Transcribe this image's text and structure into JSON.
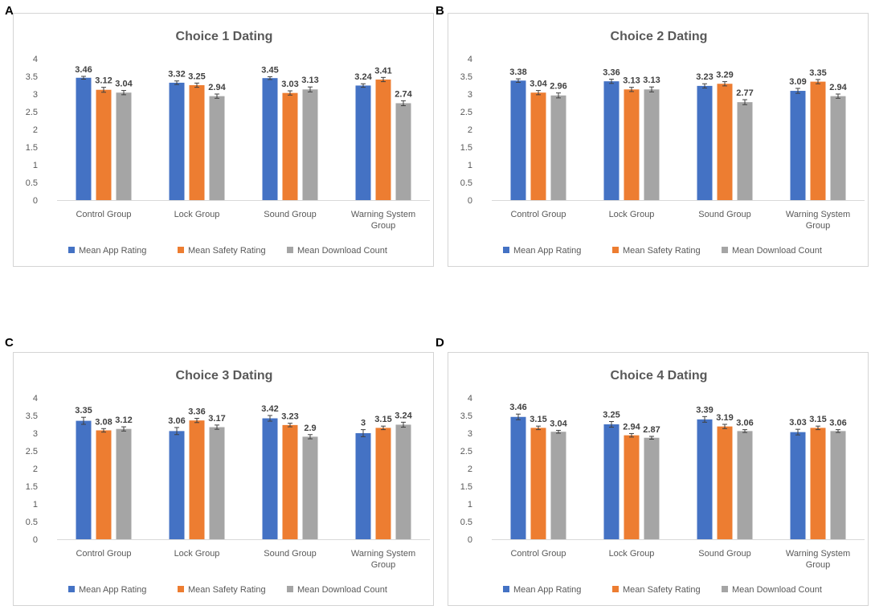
{
  "categories": [
    "Control Group",
    "Lock Group",
    "Sound Group",
    [
      "Warning System",
      "Group"
    ]
  ],
  "series_names": [
    "Mean App Rating",
    "Mean Safety Rating",
    "Mean Download Count"
  ],
  "colors": [
    "#4472c4",
    "#ed7d31",
    "#a5a5a5"
  ],
  "chart_data": [
    {
      "panel": "A",
      "type": "bar",
      "title": "Choice 1 Dating",
      "ylim": [
        0,
        4
      ],
      "yticks": [
        "0",
        "0.5",
        "1",
        "1.5",
        "2",
        "2.5",
        "3",
        "3.5",
        "4"
      ],
      "series": [
        {
          "name": "Mean App Rating",
          "values": [
            3.46,
            3.32,
            3.45,
            3.24
          ],
          "labels": [
            "3.46",
            "3.32",
            "3.45",
            "3.24"
          ]
        },
        {
          "name": "Mean Safety Rating",
          "values": [
            3.12,
            3.25,
            3.03,
            3.41
          ],
          "labels": [
            "3.12",
            "3.25",
            "3.03",
            "3.41"
          ]
        },
        {
          "name": "Mean Download Count",
          "values": [
            3.04,
            2.94,
            3.13,
            2.74
          ],
          "labels": [
            "3.04",
            "2.94",
            "3.13",
            "2.74"
          ]
        }
      ],
      "errors": [
        [
          0.04,
          0.05,
          0.04,
          0.05
        ],
        [
          0.07,
          0.06,
          0.06,
          0.06
        ],
        [
          0.06,
          0.06,
          0.07,
          0.07
        ]
      ]
    },
    {
      "panel": "B",
      "type": "bar",
      "title": "Choice 2 Dating",
      "ylim": [
        0,
        4
      ],
      "yticks": [
        "0",
        "0.5",
        "1",
        "1.5",
        "2",
        "2.5",
        "3",
        "3.5",
        "4"
      ],
      "series": [
        {
          "name": "Mean App Rating",
          "values": [
            3.38,
            3.36,
            3.23,
            3.09
          ],
          "labels": [
            "3.38",
            "3.36",
            "3.23",
            "3.09"
          ]
        },
        {
          "name": "Mean Safety Rating",
          "values": [
            3.04,
            3.13,
            3.29,
            3.35
          ],
          "labels": [
            "3.04",
            "3.13",
            "3.29",
            "3.35"
          ]
        },
        {
          "name": "Mean Download Count",
          "values": [
            2.96,
            3.13,
            2.77,
            2.94
          ],
          "labels": [
            "2.96",
            "3.13",
            "2.77",
            "2.94"
          ]
        }
      ],
      "errors": [
        [
          0.05,
          0.06,
          0.06,
          0.07
        ],
        [
          0.06,
          0.06,
          0.06,
          0.06
        ],
        [
          0.07,
          0.07,
          0.07,
          0.06
        ]
      ]
    },
    {
      "panel": "C",
      "type": "bar",
      "title": "Choice 3 Dating",
      "ylim": [
        0,
        4
      ],
      "yticks": [
        "0",
        "0.5",
        "1",
        "1.5",
        "2",
        "2.5",
        "3",
        "3.5",
        "4"
      ],
      "series": [
        {
          "name": "Mean App Rating",
          "values": [
            3.35,
            3.06,
            3.42,
            3.0
          ],
          "labels": [
            "3.35",
            "3.06",
            "3.42",
            "3"
          ]
        },
        {
          "name": "Mean Safety Rating",
          "values": [
            3.08,
            3.36,
            3.23,
            3.15
          ],
          "labels": [
            "3.08",
            "3.36",
            "3.23",
            "3.15"
          ]
        },
        {
          "name": "Mean Download Count",
          "values": [
            3.12,
            3.17,
            2.9,
            3.24
          ],
          "labels": [
            "3.12",
            "3.17",
            "2.9",
            "3.24"
          ]
        }
      ],
      "errors": [
        [
          0.1,
          0.1,
          0.08,
          0.1
        ],
        [
          0.05,
          0.06,
          0.05,
          0.05
        ],
        [
          0.06,
          0.06,
          0.06,
          0.07
        ]
      ]
    },
    {
      "panel": "D",
      "type": "bar",
      "title": "Choice 4 Dating",
      "ylim": [
        0,
        4
      ],
      "yticks": [
        "0",
        "0.5",
        "1",
        "1.5",
        "2",
        "2.5",
        "3",
        "3.5",
        "4"
      ],
      "series": [
        {
          "name": "Mean App Rating",
          "values": [
            3.46,
            3.25,
            3.39,
            3.03
          ],
          "labels": [
            "3.46",
            "3.25",
            "3.39",
            "3.03"
          ]
        },
        {
          "name": "Mean Safety Rating",
          "values": [
            3.15,
            2.94,
            3.19,
            3.15
          ],
          "labels": [
            "3.15",
            "2.94",
            "3.19",
            "3.15"
          ]
        },
        {
          "name": "Mean Download Count",
          "values": [
            3.04,
            2.87,
            3.06,
            3.06
          ],
          "labels": [
            "3.04",
            "2.87",
            "3.06",
            "3.06"
          ]
        }
      ],
      "errors": [
        [
          0.08,
          0.08,
          0.08,
          0.08
        ],
        [
          0.05,
          0.05,
          0.06,
          0.05
        ],
        [
          0.04,
          0.04,
          0.04,
          0.04
        ]
      ]
    }
  ]
}
